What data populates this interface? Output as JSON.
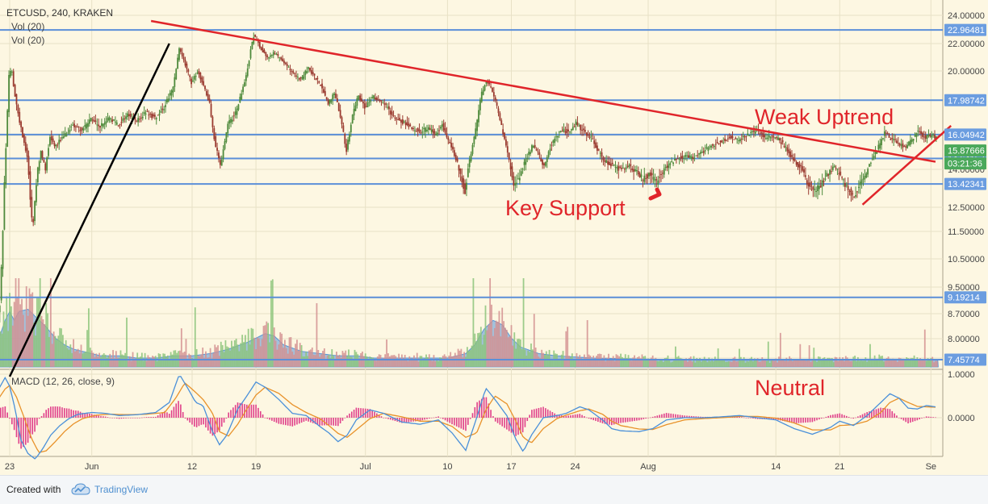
{
  "header": {
    "symbol_line": "ETCUSD, 240, KRAKEN",
    "vol_label_1": "Vol (20)",
    "vol_label_2": "Vol (20)",
    "macd_label": "MACD (12, 26, close, 9)"
  },
  "annotations": {
    "key_support": "Key Support",
    "weak_uptrend": "Weak Uptrend",
    "neutral": "Neutral"
  },
  "footer": {
    "created_with": "Created with",
    "brand": "TradingView"
  },
  "colors": {
    "background": "#fdf7e2",
    "grid": "#e8e1c6",
    "candle_up": "#4e8a3b",
    "candle_down": "#9a3a2f",
    "level_line": "#5b8fd8",
    "trend_red": "#e0252a",
    "trend_black": "#000000",
    "price_badge": "#6b9de0",
    "current_price_badge": "#4aa85a",
    "macd_line": "#4a90d9",
    "signal_line": "#e8922a",
    "histogram": "#e0408a",
    "volume_area": "#5a95d5",
    "volume_up": "#8cc47a",
    "volume_down": "#d49090"
  },
  "chart_data": {
    "type": "candlestick",
    "symbol": "ETCUSD",
    "timeframe": "240",
    "exchange": "KRAKEN",
    "x_tick_labels": [
      "23",
      "Jun",
      "12",
      "19",
      "Jul",
      "10",
      "17",
      "24",
      "Aug",
      "14",
      "21",
      "Se"
    ],
    "x_tick_days": [
      0,
      9,
      20,
      27,
      39,
      48,
      55,
      62,
      70,
      84,
      91,
      101
    ],
    "y_tick_labels": [
      "24.00000",
      "22.00000",
      "20.00000",
      "18.00000",
      "16.00000",
      "14.00000",
      "12.50000",
      "11.50000",
      "10.50000",
      "9.50000",
      "8.70000",
      "8.00000",
      "7.50000"
    ],
    "y_ticks": [
      24,
      22,
      20,
      18,
      16,
      14,
      12.5,
      11.5,
      10.5,
      9.5,
      8.7,
      8,
      7.5
    ],
    "horizontal_levels": [
      {
        "label": "22.96481",
        "value": 22.96481
      },
      {
        "label": "17.98742",
        "value": 17.98742
      },
      {
        "label": "16.04942",
        "value": 16.04942
      },
      {
        "label": "14.64157",
        "value": 14.64157
      },
      {
        "label": "13.42341",
        "value": 13.42341
      },
      {
        "label": "9.19214",
        "value": 9.19214
      },
      {
        "label": "7.45774",
        "value": 7.45774
      }
    ],
    "current_price": {
      "label": "15.87666",
      "value": 15.87666
    },
    "countdown": "03:21:36",
    "price_path": [
      [
        -1.5,
        8.2
      ],
      [
        -1,
        9.0
      ],
      [
        -0.7,
        11.2
      ],
      [
        -0.4,
        14.5
      ],
      [
        -0.2,
        17.0
      ],
      [
        0,
        19.6
      ],
      [
        0.3,
        20.2
      ],
      [
        0.6,
        18.5
      ],
      [
        1,
        17.2
      ],
      [
        1.5,
        16.0
      ],
      [
        2,
        14.8
      ],
      [
        2.3,
        13.0
      ],
      [
        2.6,
        11.6
      ],
      [
        3,
        13.5
      ],
      [
        3.5,
        15.0
      ],
      [
        4,
        14.0
      ],
      [
        4.5,
        16.0
      ],
      [
        5,
        15.4
      ],
      [
        6,
        15.9
      ],
      [
        7,
        16.6
      ],
      [
        8,
        16.3
      ],
      [
        9,
        16.9
      ],
      [
        10,
        16.5
      ],
      [
        11,
        17.0
      ],
      [
        12,
        16.6
      ],
      [
        13,
        17.2
      ],
      [
        14,
        16.8
      ],
      [
        15,
        17.3
      ],
      [
        16,
        17.0
      ],
      [
        17,
        17.6
      ],
      [
        18,
        18.8
      ],
      [
        18.7,
        21.7
      ],
      [
        19.3,
        20.5
      ],
      [
        20,
        19.2
      ],
      [
        20.7,
        20.0
      ],
      [
        21.3,
        19.0
      ],
      [
        22,
        17.8
      ],
      [
        22.6,
        15.5
      ],
      [
        23.2,
        14.2
      ],
      [
        24,
        16.6
      ],
      [
        25,
        17.4
      ],
      [
        26,
        19.6
      ],
      [
        26.8,
        22.6
      ],
      [
        27.5,
        21.8
      ],
      [
        28.3,
        21.0
      ],
      [
        29,
        21.3
      ],
      [
        30,
        20.8
      ],
      [
        31,
        19.9
      ],
      [
        32,
        19.4
      ],
      [
        32.8,
        20.2
      ],
      [
        33.5,
        19.6
      ],
      [
        34.3,
        18.9
      ],
      [
        35,
        17.8
      ],
      [
        35.7,
        18.5
      ],
      [
        36.4,
        17.0
      ],
      [
        37,
        15.1
      ],
      [
        37.6,
        17.0
      ],
      [
        38.3,
        18.3
      ],
      [
        39,
        17.6
      ],
      [
        40,
        18.2
      ],
      [
        41,
        17.9
      ],
      [
        42,
        17.2
      ],
      [
        43,
        16.8
      ],
      [
        44,
        16.5
      ],
      [
        45,
        16.2
      ],
      [
        46,
        16.4
      ],
      [
        46.8,
        16.0
      ],
      [
        47.5,
        16.6
      ],
      [
        48.2,
        15.6
      ],
      [
        48.9,
        14.8
      ],
      [
        49.5,
        13.8
      ],
      [
        50,
        13.1
      ],
      [
        50.6,
        14.8
      ],
      [
        51.2,
        16.4
      ],
      [
        51.8,
        18.4
      ],
      [
        52.4,
        19.4
      ],
      [
        53,
        18.6
      ],
      [
        53.6,
        17.4
      ],
      [
        54.2,
        16.0
      ],
      [
        54.8,
        14.6
      ],
      [
        55.3,
        13.3
      ],
      [
        56,
        13.7
      ],
      [
        56.7,
        14.6
      ],
      [
        57.4,
        15.4
      ],
      [
        58,
        15.0
      ],
      [
        58.6,
        14.1
      ],
      [
        59.3,
        15.3
      ],
      [
        60,
        16.0
      ],
      [
        60.8,
        16.3
      ],
      [
        61.5,
        16.2
      ],
      [
        62.2,
        16.7
      ],
      [
        63,
        16.2
      ],
      [
        63.8,
        15.9
      ],
      [
        64.5,
        15.2
      ],
      [
        65.3,
        14.5
      ],
      [
        66,
        14.3
      ],
      [
        67,
        14.0
      ],
      [
        68,
        14.2
      ],
      [
        68.8,
        13.9
      ],
      [
        69.5,
        13.6
      ],
      [
        70.2,
        13.8
      ],
      [
        71,
        13.5
      ],
      [
        71.7,
        13.9
      ],
      [
        72.5,
        14.4
      ],
      [
        73.3,
        14.6
      ],
      [
        74,
        14.8
      ],
      [
        75,
        14.7
      ],
      [
        76,
        15.0
      ],
      [
        77,
        15.4
      ],
      [
        78,
        15.6
      ],
      [
        79,
        15.9
      ],
      [
        80,
        15.7
      ],
      [
        81,
        16.0
      ],
      [
        82,
        16.3
      ],
      [
        83,
        15.8
      ],
      [
        83.7,
        16.0
      ],
      [
        84.5,
        15.7
      ],
      [
        85.3,
        15.2
      ],
      [
        86,
        14.5
      ],
      [
        86.8,
        14.1
      ],
      [
        87.5,
        13.5
      ],
      [
        88.2,
        13.1
      ],
      [
        89,
        13.4
      ],
      [
        89.7,
        13.8
      ],
      [
        90.5,
        14.2
      ],
      [
        91.3,
        13.6
      ],
      [
        92,
        13.2
      ],
      [
        92.6,
        12.9
      ],
      [
        93.2,
        13.4
      ],
      [
        94,
        13.9
      ],
      [
        94.8,
        14.8
      ],
      [
        95.5,
        15.5
      ],
      [
        96,
        16.2
      ],
      [
        96.7,
        15.8
      ],
      [
        97.4,
        15.6
      ],
      [
        98.2,
        15.3
      ],
      [
        99,
        15.7
      ],
      [
        99.7,
        16.3
      ],
      [
        100.4,
        15.9
      ],
      [
        101.2,
        16.0
      ],
      [
        101.8,
        15.88
      ]
    ],
    "volume_path": [
      [
        -1.5,
        0.9
      ],
      [
        -0.5,
        2.1
      ],
      [
        0,
        2.5
      ],
      [
        0.5,
        2.1
      ],
      [
        1,
        2.5
      ],
      [
        2,
        2.6
      ],
      [
        3,
        2.2
      ],
      [
        4,
        1.8
      ],
      [
        5,
        1.3
      ],
      [
        6,
        1.0
      ],
      [
        7,
        0.8
      ],
      [
        8,
        0.7
      ],
      [
        10,
        0.5
      ],
      [
        12,
        0.5
      ],
      [
        14,
        0.4
      ],
      [
        16,
        0.4
      ],
      [
        18,
        0.5
      ],
      [
        20,
        0.5
      ],
      [
        22,
        0.6
      ],
      [
        24,
        0.8
      ],
      [
        26,
        1.1
      ],
      [
        28,
        1.5
      ],
      [
        29,
        1.4
      ],
      [
        30,
        1.0
      ],
      [
        32,
        0.7
      ],
      [
        34,
        0.6
      ],
      [
        36,
        0.5
      ],
      [
        38,
        0.5
      ],
      [
        40,
        0.4
      ],
      [
        44,
        0.4
      ],
      [
        48,
        0.4
      ],
      [
        50,
        0.6
      ],
      [
        51,
        1.0
      ],
      [
        52,
        1.7
      ],
      [
        53,
        2.1
      ],
      [
        54,
        1.9
      ],
      [
        55,
        1.3
      ],
      [
        56,
        0.9
      ],
      [
        58,
        0.6
      ],
      [
        60,
        0.5
      ],
      [
        64,
        0.4
      ],
      [
        70,
        0.35
      ],
      [
        76,
        0.3
      ],
      [
        82,
        0.3
      ],
      [
        86,
        0.3
      ],
      [
        90,
        0.3
      ],
      [
        94,
        0.35
      ],
      [
        98,
        0.35
      ],
      [
        101.8,
        0.3
      ]
    ],
    "volume_max": 4,
    "macd": {
      "ylim": [
        -1.5,
        1.1
      ],
      "y_tick_labels": [
        "1.0000",
        "0.0000"
      ],
      "y_ticks": [
        1.0,
        0.0
      ],
      "macd_path": [
        [
          -1.5,
          0.55
        ],
        [
          -0.5,
          0.92
        ],
        [
          0,
          0.72
        ],
        [
          0.6,
          0.2
        ],
        [
          1.2,
          -0.5
        ],
        [
          2,
          -0.82
        ],
        [
          2.8,
          -0.95
        ],
        [
          3.6,
          -0.72
        ],
        [
          4.5,
          -0.4
        ],
        [
          5.5,
          -0.18
        ],
        [
          6.5,
          -0.02
        ],
        [
          7.5,
          0.08
        ],
        [
          9,
          0.12
        ],
        [
          10.5,
          0.1
        ],
        [
          12,
          0.05
        ],
        [
          14,
          0.07
        ],
        [
          16,
          0.12
        ],
        [
          17.5,
          0.35
        ],
        [
          18.6,
          1.0
        ],
        [
          19.4,
          0.72
        ],
        [
          20.4,
          0.35
        ],
        [
          21.2,
          0.28
        ],
        [
          22.2,
          -0.3
        ],
        [
          23,
          -0.62
        ],
        [
          23.8,
          -0.4
        ],
        [
          25,
          0.2
        ],
        [
          26,
          0.5
        ],
        [
          27,
          0.82
        ],
        [
          28,
          0.7
        ],
        [
          29.5,
          0.42
        ],
        [
          31,
          0.1
        ],
        [
          32.5,
          0.05
        ],
        [
          34,
          -0.2
        ],
        [
          35,
          -0.35
        ],
        [
          36,
          -0.55
        ],
        [
          37,
          -0.4
        ],
        [
          38,
          -0.05
        ],
        [
          39.5,
          0.18
        ],
        [
          41,
          0.1
        ],
        [
          43,
          -0.1
        ],
        [
          45,
          -0.15
        ],
        [
          47,
          -0.05
        ],
        [
          48.5,
          -0.35
        ],
        [
          50,
          -0.75
        ],
        [
          51.2,
          0.0
        ],
        [
          52.2,
          0.68
        ],
        [
          53.2,
          0.42
        ],
        [
          54.5,
          0.05
        ],
        [
          55.5,
          -0.5
        ],
        [
          56.3,
          -0.78
        ],
        [
          57.2,
          -0.4
        ],
        [
          58.5,
          0.0
        ],
        [
          60,
          0.05
        ],
        [
          61,
          0.1
        ],
        [
          62.5,
          0.25
        ],
        [
          63.5,
          0.18
        ],
        [
          65,
          -0.05
        ],
        [
          66,
          -0.25
        ],
        [
          67,
          -0.3
        ],
        [
          69,
          -0.32
        ],
        [
          70.5,
          -0.25
        ],
        [
          72,
          -0.05
        ],
        [
          74,
          0.0
        ],
        [
          76,
          0.0
        ],
        [
          78,
          0.02
        ],
        [
          80,
          0.05
        ],
        [
          82,
          0.0
        ],
        [
          84,
          -0.05
        ],
        [
          86,
          -0.25
        ],
        [
          88,
          -0.38
        ],
        [
          90,
          -0.22
        ],
        [
          91,
          -0.08
        ],
        [
          92.5,
          -0.18
        ],
        [
          94,
          0.05
        ],
        [
          95.5,
          0.35
        ],
        [
          96.5,
          0.55
        ],
        [
          97.5,
          0.45
        ],
        [
          98.5,
          0.22
        ],
        [
          99.5,
          0.2
        ],
        [
          100.5,
          0.28
        ],
        [
          101.5,
          0.25
        ]
      ],
      "signal_path": [
        [
          -1.5,
          0.35
        ],
        [
          -0.5,
          0.66
        ],
        [
          0,
          0.74
        ],
        [
          0.7,
          0.5
        ],
        [
          1.5,
          0.05
        ],
        [
          2.4,
          -0.48
        ],
        [
          3.2,
          -0.8
        ],
        [
          4,
          -0.76
        ],
        [
          5,
          -0.55
        ],
        [
          6,
          -0.32
        ],
        [
          7,
          -0.14
        ],
        [
          8,
          -0.02
        ],
        [
          9.5,
          0.06
        ],
        [
          11,
          0.08
        ],
        [
          13,
          0.07
        ],
        [
          15,
          0.08
        ],
        [
          17,
          0.12
        ],
        [
          18.2,
          0.45
        ],
        [
          19.2,
          0.8
        ],
        [
          20.2,
          0.62
        ],
        [
          21.2,
          0.42
        ],
        [
          22.2,
          0.12
        ],
        [
          23,
          -0.32
        ],
        [
          24,
          -0.42
        ],
        [
          25,
          -0.15
        ],
        [
          26,
          0.2
        ],
        [
          27,
          0.52
        ],
        [
          28,
          0.7
        ],
        [
          29.5,
          0.56
        ],
        [
          31,
          0.3
        ],
        [
          32.5,
          0.12
        ],
        [
          34,
          -0.02
        ],
        [
          35,
          -0.18
        ],
        [
          36,
          -0.36
        ],
        [
          37,
          -0.45
        ],
        [
          38,
          -0.28
        ],
        [
          39.5,
          -0.02
        ],
        [
          41,
          0.1
        ],
        [
          43,
          0.02
        ],
        [
          45,
          -0.08
        ],
        [
          47,
          -0.08
        ],
        [
          48.5,
          -0.2
        ],
        [
          50,
          -0.45
        ],
        [
          51.2,
          -0.35
        ],
        [
          52.2,
          0.18
        ],
        [
          53.2,
          0.5
        ],
        [
          54.5,
          0.32
        ],
        [
          55.5,
          -0.08
        ],
        [
          56.3,
          -0.45
        ],
        [
          57.2,
          -0.58
        ],
        [
          58.5,
          -0.25
        ],
        [
          60,
          -0.02
        ],
        [
          61,
          0.06
        ],
        [
          62.5,
          0.16
        ],
        [
          63.5,
          0.2
        ],
        [
          65,
          0.08
        ],
        [
          66,
          -0.08
        ],
        [
          67,
          -0.18
        ],
        [
          69,
          -0.26
        ],
        [
          70.5,
          -0.27
        ],
        [
          72,
          -0.16
        ],
        [
          74,
          -0.05
        ],
        [
          76,
          -0.02
        ],
        [
          78,
          0.0
        ],
        [
          80,
          0.03
        ],
        [
          82,
          0.03
        ],
        [
          84,
          -0.01
        ],
        [
          86,
          -0.12
        ],
        [
          88,
          -0.28
        ],
        [
          90,
          -0.28
        ],
        [
          91,
          -0.18
        ],
        [
          92.5,
          -0.16
        ],
        [
          94,
          -0.08
        ],
        [
          95.5,
          0.12
        ],
        [
          96.5,
          0.35
        ],
        [
          97.5,
          0.45
        ],
        [
          98.5,
          0.35
        ],
        [
          99.5,
          0.26
        ],
        [
          100.5,
          0.25
        ],
        [
          101.5,
          0.24
        ]
      ]
    },
    "trend_lines": [
      {
        "name": "descending-resistance",
        "color": "red",
        "start": [
          15.5,
          23.6
        ],
        "end": [
          101.5,
          14.45
        ]
      },
      {
        "name": "weak-uptrend",
        "color": "red",
        "start": [
          93.5,
          12.6
        ],
        "end": [
          102,
          16.05
        ],
        "extended_to": [
          103.2,
          16.55
        ]
      },
      {
        "name": "early-uptrend",
        "color": "black",
        "start": [
          0,
          7.0
        ],
        "end": [
          17.5,
          22.0
        ]
      }
    ]
  }
}
